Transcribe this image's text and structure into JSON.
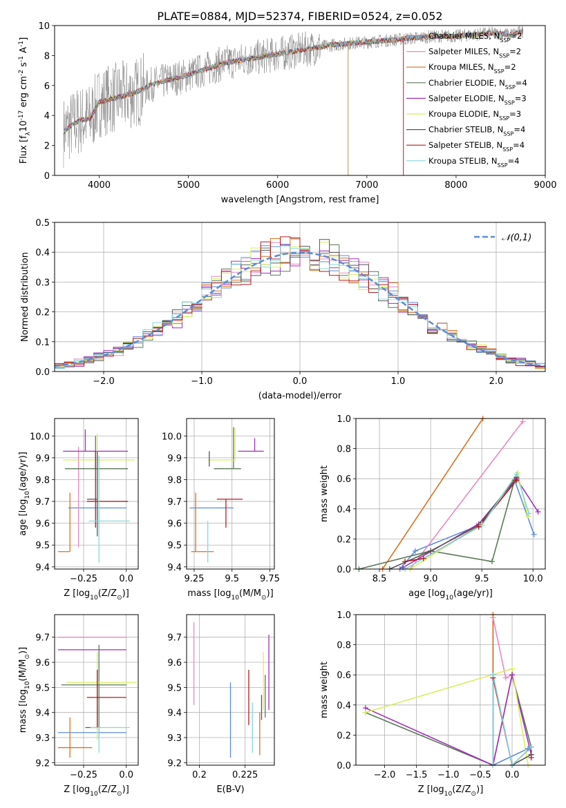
{
  "figure_title": "PLATE=0884, MJD=52374, FIBERID=0524, z=0.052",
  "series_styles": [
    {
      "name": "Chabrier MILES, N$_{SSP}$=2",
      "color": "#5b8bd8"
    },
    {
      "name": "Salpeter MILES, N$_{SSP}$=2",
      "color": "#e987c0"
    },
    {
      "name": "Kroupa MILES, N$_{SSP}$=2",
      "color": "#d9711e"
    },
    {
      "name": "Chabrier ELODIE, N$_{SSP}$=4",
      "color": "#587a56"
    },
    {
      "name": "Salpeter ELODIE, N$_{SSP}$=3",
      "color": "#a02fb8"
    },
    {
      "name": "Kroupa ELODIE, N$_{SSP}$=3",
      "color": "#d7ef5a"
    },
    {
      "name": "Chabrier STELIB, N$_{SSP}$=4",
      "color": "#555555"
    },
    {
      "name": "Salpeter STELIB, N$_{SSP}$=4",
      "color": "#b2191f"
    },
    {
      "name": "Kroupa STELIB, N$_{SSP}$=4",
      "color": "#86d6dc"
    }
  ],
  "data_color": "#808080",
  "gauss_color": "#5b8bd8",
  "chart_data": [
    {
      "id": "spectrum",
      "type": "line",
      "xlabel": "wavelength [Angstrom, rest frame]",
      "ylabel": "Flux [f$_\\lambda$10$^{-17}$ erg cm$^{-2}$ s$^{-1}$ A$^{-1}$]",
      "xlim": [
        3500,
        9000
      ],
      "ylim": [
        0,
        10
      ],
      "xticks": [
        4000,
        5000,
        6000,
        7000,
        8000,
        9000
      ],
      "yticks": [
        0,
        2,
        4,
        6,
        8,
        10
      ],
      "grid": false,
      "legend": "upper right",
      "data_model_x": [
        3600,
        3700,
        3800,
        3900,
        4000,
        4200,
        4400,
        4600,
        4800,
        5000,
        5200,
        5400,
        5600,
        5800,
        6000,
        6200,
        6400,
        6600,
        6800,
        7000,
        7200,
        7400,
        7600,
        7800,
        8000,
        8200,
        8400,
        8600,
        8750
      ],
      "data_model_y": [
        2.9,
        3.4,
        3.7,
        3.8,
        4.9,
        5.2,
        5.5,
        6.1,
        6.4,
        6.7,
        7.1,
        7.5,
        7.7,
        7.9,
        8.1,
        8.3,
        8.5,
        8.7,
        8.8,
        8.9,
        9.0,
        9.1,
        9.2,
        9.3,
        9.3,
        9.4,
        9.5,
        9.4,
        9.6
      ]
    },
    {
      "id": "residuals",
      "type": "histogram",
      "xlabel": "(data-model)/error",
      "ylabel": "Normed distribution",
      "xlim": [
        -2.5,
        2.5
      ],
      "ylim": [
        0,
        0.5
      ],
      "xticks": [
        -2,
        -1,
        0,
        1,
        2
      ],
      "yticks": [
        0,
        0.1,
        0.2,
        0.3,
        0.4,
        0.5
      ],
      "grid": true,
      "legend": "upper right",
      "gauss_label": "$\\mathcal{N}(0,1)$",
      "bin_width": 0.1
    },
    {
      "id": "age_vs_Z",
      "type": "errorbar",
      "xlabel": "Z [log$_{10}$(Z/Z$_\\odot$)]",
      "ylabel": "age  [log$_{10}$(age/yr)]",
      "xlim": [
        -0.42,
        0.07
      ],
      "ylim": [
        9.39,
        10.08
      ],
      "xticks": [
        -0.25,
        0.0
      ],
      "yticks": [
        9.4,
        9.5,
        9.6,
        9.7,
        9.8,
        9.9,
        10.0
      ],
      "grid": true,
      "points": [
        {
          "x": -0.16,
          "xerr": [
            0.18,
            0.16
          ],
          "y": 9.67,
          "yerr": [
            0.0,
            0.0
          ]
        },
        {
          "x": -0.28,
          "xerr": [
            0.0,
            0.0
          ],
          "y": 9.71,
          "yerr": [
            0.22,
            0.24
          ]
        },
        {
          "x": -0.33,
          "xerr": [
            0.07,
            0.0
          ],
          "y": 9.47,
          "yerr": [
            0.0,
            0.27
          ]
        },
        {
          "x": -0.18,
          "xerr": [
            0.18,
            0.19
          ],
          "y": 9.85,
          "yerr": [
            0.0,
            0.15
          ]
        },
        {
          "x": -0.24,
          "xerr": [
            0.13,
            0.25
          ],
          "y": 9.93,
          "yerr": [
            0.0,
            0.1
          ]
        },
        {
          "x": -0.17,
          "xerr": [
            0.2,
            0.22
          ],
          "y": 9.89,
          "yerr": [
            0.26,
            0.12
          ]
        },
        {
          "x": -0.17,
          "xerr": [
            0.06,
            0.0
          ],
          "y": 9.71,
          "yerr": [
            0.17,
            0.22
          ]
        },
        {
          "x": -0.18,
          "xerr": [
            0.05,
            0.19
          ],
          "y": 9.7,
          "yerr": [
            0.12,
            0.23
          ]
        },
        {
          "x": -0.16,
          "xerr": [
            0.06,
            0.18
          ],
          "y": 9.61,
          "yerr": [
            0.19,
            0.3
          ]
        }
      ]
    },
    {
      "id": "age_vs_mass",
      "type": "errorbar",
      "xlabel": "mass [log$_{10}$(M/M$_\\odot$)]",
      "ylabel": "",
      "xlim": [
        9.2,
        9.78
      ],
      "ylim": [
        9.39,
        10.08
      ],
      "xticks": [
        9.25,
        9.5,
        9.75
      ],
      "yticks": [
        9.4,
        9.5,
        9.6,
        9.7,
        9.8,
        9.9,
        10.0
      ],
      "grid": true,
      "points": [
        {
          "x": 9.32,
          "xerr": [
            0.1,
            0.19
          ],
          "y": 9.67,
          "yerr": [
            0.0,
            0.0
          ]
        },
        {
          "x": 9.46,
          "xerr": [
            0.0,
            0.0
          ],
          "y": 9.71,
          "yerr": [
            0.0,
            0.0
          ]
        },
        {
          "x": 9.26,
          "xerr": [
            0.03,
            0.12
          ],
          "y": 9.47,
          "yerr": [
            0.0,
            0.27
          ]
        },
        {
          "x": 9.51,
          "xerr": [
            0.13,
            0.05
          ],
          "y": 9.85,
          "yerr": [
            0.0,
            0.19
          ]
        },
        {
          "x": 9.65,
          "xerr": [
            0.11,
            0.06
          ],
          "y": 9.93,
          "yerr": [
            0.0,
            0.06
          ]
        },
        {
          "x": 9.52,
          "xerr": [
            0.18,
            0.0
          ],
          "y": 9.89,
          "yerr": [
            0.0,
            0.15
          ]
        },
        {
          "x": 9.35,
          "xerr": [
            0.0,
            0.0
          ],
          "y": 9.86,
          "yerr": [
            0.0,
            0.07
          ]
        },
        {
          "x": 9.46,
          "xerr": [
            0.06,
            0.11
          ],
          "y": 9.71,
          "yerr": [
            0.13,
            0.0
          ]
        },
        {
          "x": 9.34,
          "xerr": [
            0.0,
            0.0
          ],
          "y": 9.61,
          "yerr": [
            0.19,
            0.0
          ]
        }
      ]
    },
    {
      "id": "weight_vs_age",
      "type": "line",
      "xlabel": "age  [log$_{10}$(age/yr)]",
      "ylabel": "mass weight",
      "xlim": [
        8.27,
        10.12
      ],
      "ylim": [
        0,
        1
      ],
      "xticks": [
        8.5,
        9.0,
        9.5,
        10.0
      ],
      "yticks": [
        0,
        0.2,
        0.4,
        0.6,
        0.8,
        1.0
      ],
      "grid": true,
      "series": [
        {
          "x": [
            8.7,
            8.85,
            9.47,
            9.82,
            10.01
          ],
          "y": [
            0.0,
            0.12,
            0.29,
            0.59,
            0.23
          ]
        },
        {
          "x": [
            8.8,
            9.9
          ],
          "y": [
            0.0,
            0.98
          ]
        },
        {
          "x": [
            8.53,
            9.51
          ],
          "y": [
            0.0,
            1.0
          ]
        },
        {
          "x": [
            8.3,
            9.0,
            9.6,
            9.82
          ],
          "y": [
            0.0,
            0.12,
            0.05,
            0.59
          ]
        },
        {
          "x": [
            8.73,
            9.47,
            9.84,
            10.05
          ],
          "y": [
            0.01,
            0.3,
            0.6,
            0.38
          ]
        },
        {
          "x": [
            8.8,
            9.5,
            9.85,
            9.95
          ],
          "y": [
            0.0,
            0.3,
            0.64,
            0.35
          ]
        },
        {
          "x": [
            8.6,
            9.0,
            9.47,
            9.84
          ],
          "y": [
            0.0,
            0.12,
            0.29,
            0.61
          ]
        },
        {
          "x": [
            8.75,
            8.93,
            9.47,
            9.84
          ],
          "y": [
            0.05,
            0.07,
            0.28,
            0.59
          ]
        },
        {
          "x": [
            8.75,
            9.5,
            9.84,
            9.96
          ],
          "y": [
            0.0,
            0.29,
            0.63,
            0.37
          ]
        }
      ]
    },
    {
      "id": "mass_vs_Z",
      "type": "errorbar",
      "xlabel": "Z [log$_{10}$(Z/Z$_\\odot$)]",
      "ylabel": "mass [log$_{10}$(M/M$_\\odot$)]",
      "xlim": [
        -0.42,
        0.07
      ],
      "ylim": [
        9.19,
        9.79
      ],
      "xticks": [
        -0.25,
        0.0
      ],
      "yticks": [
        9.2,
        9.3,
        9.4,
        9.5,
        9.6,
        9.7
      ],
      "grid": true,
      "points": [
        {
          "x": -0.2,
          "xerr": [
            0.2,
            0.2
          ],
          "y": 9.32,
          "yerr": [
            0.0,
            0.0
          ]
        },
        {
          "x": -0.2,
          "xerr": [
            0.2,
            0.2
          ],
          "y": 9.7,
          "yerr": [
            0.0,
            0.0
          ]
        },
        {
          "x": -0.33,
          "xerr": [
            0.07,
            0.13
          ],
          "y": 9.26,
          "yerr": [
            0.04,
            0.12
          ]
        },
        {
          "x": -0.16,
          "xerr": [
            0.22,
            0.16
          ],
          "y": 9.51,
          "yerr": [
            0.21,
            0.16
          ]
        },
        {
          "x": -0.2,
          "xerr": [
            0.2,
            0.2
          ],
          "y": 9.65,
          "yerr": [
            0.0,
            0.0
          ]
        },
        {
          "x": -0.17,
          "xerr": [
            0.18,
            0.23
          ],
          "y": 9.52,
          "yerr": [
            0.23,
            0.12
          ]
        },
        {
          "x": -0.17,
          "xerr": [
            0.07,
            0.0
          ],
          "y": 9.34,
          "yerr": [
            0.0,
            0.23
          ]
        },
        {
          "x": -0.17,
          "xerr": [
            0.06,
            0.17
          ],
          "y": 9.46,
          "yerr": [
            0.12,
            0.11
          ]
        },
        {
          "x": -0.16,
          "xerr": [
            0.05,
            0.18
          ],
          "y": 9.34,
          "yerr": [
            0.1,
            0.0
          ]
        }
      ]
    },
    {
      "id": "mass_vs_ebv",
      "type": "errorbar",
      "xlabel": "E(B-V)",
      "ylabel": "",
      "xlim": [
        0.193,
        0.241
      ],
      "ylim": [
        9.19,
        9.79
      ],
      "xticks": [
        0.2,
        0.225
      ],
      "yticks": [
        9.2,
        9.3,
        9.4,
        9.5,
        9.6,
        9.7
      ],
      "grid": true,
      "points": [
        {
          "x": 0.217,
          "xerr": [
            0.0,
            0.0
          ],
          "y": 9.37,
          "yerr": [
            0.15,
            0.15
          ]
        },
        {
          "x": 0.197,
          "xerr": [
            0.0,
            0.0
          ],
          "y": 9.6,
          "yerr": [
            0.17,
            0.16
          ]
        },
        {
          "x": 0.233,
          "xerr": [
            0.0,
            0.0
          ],
          "y": 9.31,
          "yerr": [
            0.08,
            0.09
          ]
        },
        {
          "x": 0.236,
          "xerr": [
            0.0,
            0.0
          ],
          "y": 9.48,
          "yerr": [
            0.1,
            0.07
          ]
        },
        {
          "x": 0.238,
          "xerr": [
            0.0,
            0.0
          ],
          "y": 9.56,
          "yerr": [
            0.15,
            0.15
          ]
        },
        {
          "x": 0.235,
          "xerr": [
            0.0,
            0.0
          ],
          "y": 9.51,
          "yerr": [
            0.1,
            0.13
          ]
        },
        {
          "x": 0.234,
          "xerr": [
            0.0,
            0.0
          ],
          "y": 9.42,
          "yerr": [
            0.05,
            0.05
          ]
        },
        {
          "x": 0.227,
          "xerr": [
            0.0,
            0.0
          ],
          "y": 9.46,
          "yerr": [
            0.11,
            0.11
          ]
        },
        {
          "x": 0.229,
          "xerr": [
            0.0,
            0.0
          ],
          "y": 9.34,
          "yerr": [
            0.1,
            0.1
          ]
        }
      ]
    },
    {
      "id": "weight_vs_Z",
      "type": "line",
      "xlabel": "Z [log$_{10}$(Z/Z$_\\odot$)]",
      "ylabel": "mass weight",
      "xlim": [
        -2.45,
        0.52
      ],
      "ylim": [
        0,
        1
      ],
      "xticks": [
        -2.0,
        -1.5,
        -1.0,
        -0.5,
        0.0
      ],
      "yticks": [
        0,
        0.2,
        0.4,
        0.6,
        0.8,
        1.0
      ],
      "grid": true,
      "series": [
        {
          "x": [
            -0.3,
            -0.3,
            0.25
          ],
          "y": [
            0.6,
            0.0,
            0.11
          ]
        },
        {
          "x": [
            -0.3,
            -0.3,
            -0.1,
            0.0
          ],
          "y": [
            0.0,
            0.98,
            0.58,
            0.6
          ]
        },
        {
          "x": [
            -0.3,
            -0.3
          ],
          "y": [
            0.0,
            1.0
          ]
        },
        {
          "x": [
            -2.3,
            -0.3,
            0.0,
            0.3
          ],
          "y": [
            0.35,
            0.0,
            0.6,
            0.12
          ]
        },
        {
          "x": [
            -2.3,
            -0.3,
            0.0,
            0.3
          ],
          "y": [
            0.38,
            0.0,
            0.6,
            0.07
          ]
        },
        {
          "x": [
            -2.3,
            0.0,
            0.25
          ],
          "y": [
            0.35,
            0.64,
            0.0
          ]
        },
        {
          "x": [
            -0.3,
            -0.3,
            0.0,
            0.3
          ],
          "y": [
            0.0,
            0.6,
            0.0,
            0.07
          ]
        },
        {
          "x": [
            -0.3,
            0.0,
            0.3,
            0.3
          ],
          "y": [
            0.58,
            0.0,
            0.12,
            0.05
          ]
        },
        {
          "x": [
            -0.3,
            -0.3,
            0.0,
            0.3
          ],
          "y": [
            0.0,
            0.6,
            0.0,
            0.12
          ]
        }
      ]
    }
  ]
}
